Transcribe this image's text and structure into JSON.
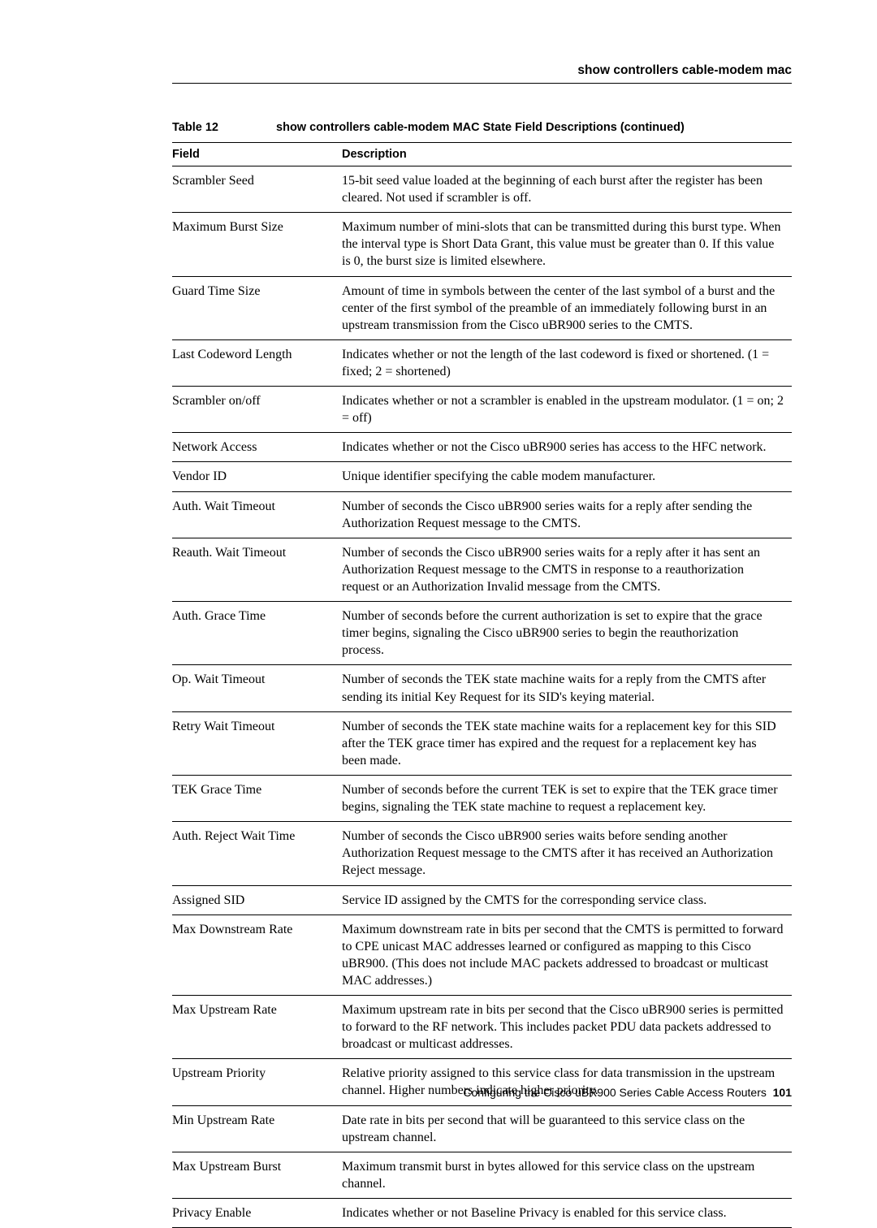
{
  "header": {
    "title": "show controllers cable-modem mac"
  },
  "table": {
    "caption_label": "Table 12",
    "caption_title": "show controllers cable-modem  MAC State Field Descriptions (continued)",
    "columns": {
      "field": "Field",
      "description": "Description"
    },
    "rows": [
      {
        "field": "Scrambler Seed",
        "desc": "15-bit seed value loaded at the beginning of each burst after the register has been cleared. Not used if scrambler is off."
      },
      {
        "field": "Maximum Burst Size",
        "desc": "Maximum number of mini-slots that can be transmitted during this burst type. When the interval type is Short Data Grant, this value must be greater than 0. If this value is 0, the burst size is limited elsewhere."
      },
      {
        "field": "Guard Time Size",
        "desc": "Amount of time in symbols between the center of the last symbol of a burst and the center of the first symbol of the preamble of an immediately following burst in an upstream transmission from the Cisco uBR900 series to the CMTS."
      },
      {
        "field": "Last Codeword Length",
        "desc": "Indicates whether or not the length of the last codeword is fixed or shortened. (1 = fixed; 2 = shortened)"
      },
      {
        "field": "Scrambler on/off",
        "desc": "Indicates whether or not a scrambler is enabled in the upstream modulator. (1 = on; 2 = off)"
      },
      {
        "field": "Network Access",
        "desc": "Indicates whether or not the Cisco uBR900 series has access to the HFC network."
      },
      {
        "field": "Vendor ID",
        "desc": "Unique identifier specifying the cable modem manufacturer."
      },
      {
        "field": "Auth. Wait Timeout",
        "desc": "Number of seconds the Cisco uBR900 series waits for a reply after sending the Authorization Request message to the CMTS."
      },
      {
        "field": "Reauth. Wait Timeout",
        "desc": "Number of seconds the Cisco uBR900 series waits for a reply after it has sent an Authorization Request message to the CMTS in response to a reauthorization request or an Authorization Invalid message from the CMTS."
      },
      {
        "field": "Auth. Grace Time",
        "desc": "Number of seconds before the current authorization is set to expire that the grace timer begins, signaling the Cisco uBR900 series to begin the reauthorization process."
      },
      {
        "field": "Op. Wait Timeout",
        "desc": "Number of seconds the TEK state machine waits for a reply from the CMTS after sending its initial Key Request for its SID's keying material."
      },
      {
        "field": "Retry Wait Timeout",
        "desc": "Number of seconds the TEK state machine waits for a replacement key for this SID after the TEK grace timer has expired and the request for a replacement key has been made."
      },
      {
        "field": "TEK Grace Time",
        "desc": "Number of seconds before the current TEK is set to expire that the TEK grace timer begins, signaling the TEK state machine to request a replacement key."
      },
      {
        "field": "Auth. Reject Wait Time",
        "desc": "Number of seconds the Cisco uBR900 series waits before sending another Authorization Request message to the CMTS after it has received an Authorization Reject message."
      },
      {
        "field": "Assigned SID",
        "desc": "Service ID assigned by the CMTS for the corresponding service class."
      },
      {
        "field": "Max Downstream Rate",
        "desc": "Maximum downstream rate in bits per second that the CMTS is permitted to forward to CPE unicast MAC addresses learned or configured as mapping to this Cisco uBR900. (This does not include MAC packets addressed to broadcast or multicast MAC addresses.)"
      },
      {
        "field": "Max Upstream Rate",
        "desc": "Maximum upstream rate in bits per second that the Cisco uBR900 series is permitted to forward to the RF network. This includes packet PDU data packets addressed to broadcast or multicast addresses."
      },
      {
        "field": "Upstream Priority",
        "desc": "Relative priority assigned to this service class for data transmission in the upstream channel. Higher numbers indicate higher priority."
      },
      {
        "field": "Min Upstream Rate",
        "desc": "Date rate in bits per second that will be guaranteed to this service class on the upstream channel."
      },
      {
        "field": "Max Upstream Burst",
        "desc": "Maximum transmit burst in bytes allowed for this service class on the upstream channel."
      },
      {
        "field": "Privacy Enable",
        "desc": "Indicates whether or not Baseline Privacy is enabled for this service class."
      }
    ]
  },
  "footer": {
    "text": "Configuring the Cisco uBR900 Series Cable Access Routers",
    "page": "101"
  }
}
